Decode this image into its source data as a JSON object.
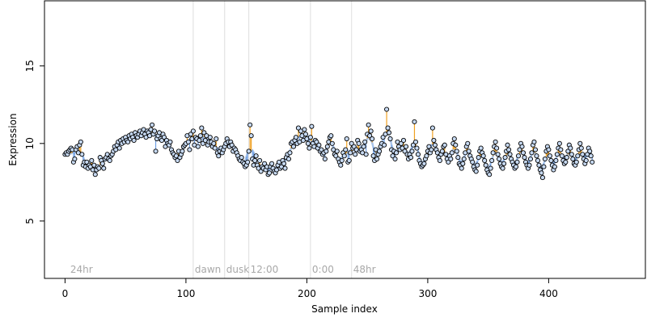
{
  "chart_data": {
    "type": "scatter",
    "xlabel": "Sample index",
    "ylabel": "Expression",
    "xlim": [
      -17,
      480
    ],
    "ylim": [
      1.3,
      19.2
    ],
    "x_ticks": [
      0,
      100,
      200,
      300,
      400
    ],
    "y_ticks": [
      5,
      10,
      15
    ],
    "grid": false,
    "legend": "none",
    "colors": {
      "above_fit_segment": "#f0a020",
      "below_fit_segment": "#6f9fe3",
      "fit_line": "#a9c4ea",
      "point_fill": "#c6d9f2",
      "point_stroke": "#000000",
      "annotation_line": "#dedede",
      "annotation_text": "#a8a8a8"
    },
    "annotations": [
      {
        "x": 3,
        "label": "24hr",
        "line": false
      },
      {
        "x": 106,
        "label": "dawn",
        "line": true
      },
      {
        "x": 132,
        "label": "dusk",
        "line": true
      },
      {
        "x": 152,
        "label": "12:00",
        "line": true
      },
      {
        "x": 203,
        "label": "0:00",
        "line": true
      },
      {
        "x": 237,
        "label": "48hr",
        "line": true
      }
    ],
    "series": [
      {
        "values": [
          9.3,
          9.4,
          9.3,
          9.5,
          9.6,
          9.7,
          9.6,
          8.8,
          9.0,
          9.6,
          9.8,
          9.4,
          9.9,
          10.1,
          9.3,
          8.6,
          8.8,
          8.5,
          8.8,
          8.4,
          8.6,
          8.5,
          8.9,
          8.3,
          8.6,
          8.0,
          8.3,
          8.5,
          8.4,
          9.1,
          8.9,
          8.7,
          8.4,
          9.0,
          9.1,
          9.3,
          9.0,
          8.9,
          9.2,
          9.3,
          9.5,
          9.8,
          9.6,
          9.9,
          10.1,
          9.7,
          10.2,
          10.0,
          10.3,
          10.1,
          10.4,
          10.2,
          10.1,
          10.5,
          10.3,
          10.6,
          10.4,
          10.2,
          10.7,
          10.5,
          10.4,
          10.6,
          10.8,
          10.5,
          10.7,
          10.9,
          10.6,
          10.4,
          10.8,
          10.7,
          10.5,
          10.9,
          11.2,
          10.6,
          10.8,
          9.5,
          10.3,
          10.5,
          10.7,
          10.3,
          10.2,
          10.6,
          10.4,
          9.8,
          10.2,
          10.0,
          9.9,
          10.1,
          9.6,
          9.4,
          9.3,
          9.1,
          9.2,
          8.9,
          9.5,
          9.1,
          9.3,
          9.5,
          9.8,
          9.9,
          10.0,
          10.5,
          10.1,
          9.6,
          10.6,
          10.3,
          10.8,
          9.9,
          10.4,
          10.3,
          9.8,
          10.2,
          10.5,
          11.0,
          10.0,
          10.7,
          10.2,
          10.5,
          9.9,
          10.1,
          10.4,
          10.1,
          9.8,
          10.0,
          9.7,
          10.3,
          9.4,
          9.2,
          9.5,
          9.7,
          9.4,
          9.6,
          9.8,
          10.0,
          10.3,
          10.1,
          9.8,
          10.1,
          9.9,
          9.5,
          9.7,
          9.6,
          9.4,
          9.2,
          9.0,
          8.9,
          9.1,
          8.8,
          8.7,
          8.5,
          8.6,
          8.8,
          9.5,
          11.2,
          10.5,
          9.0,
          8.6,
          8.9,
          9.2,
          8.6,
          8.4,
          8.9,
          8.2,
          8.5,
          8.4,
          8.7,
          8.3,
          8.5,
          8.0,
          8.1,
          8.5,
          8.7,
          8.4,
          8.2,
          8.1,
          8.3,
          8.6,
          8.8,
          8.4,
          8.5,
          8.9,
          8.7,
          8.4,
          9.1,
          9.3,
          9.0,
          9.4,
          10.0,
          10.1,
          9.8,
          10.2,
          10.4,
          10.0,
          11.0,
          10.1,
          10.8,
          10.5,
          10.2,
          10.9,
          10.6,
          10.3,
          10.0,
          9.7,
          10.4,
          11.1,
          10.0,
          9.8,
          10.2,
          10.1,
          9.7,
          9.9,
          9.5,
          9.6,
          9.3,
          9.4,
          9.0,
          9.5,
          9.8,
          10.1,
          10.4,
          10.5,
          10.0,
          9.6,
          9.3,
          9.2,
          9.5,
          9.0,
          8.8,
          8.6,
          8.9,
          9.4,
          9.2,
          9.6,
          10.3,
          8.8,
          8.9,
          9.4,
          10.0,
          9.7,
          9.8,
          9.3,
          9.6,
          10.2,
          10.0,
          9.5,
          9.6,
          9.4,
          9.8,
          10.1,
          9.3,
          10.6,
          11.2,
          10.5,
          10.8,
          10.3,
          9.2,
          8.9,
          9.6,
          9.0,
          9.3,
          9.5,
          9.8,
          10.0,
          10.4,
          9.9,
          10.6,
          12.2,
          11.0,
          10.7,
          10.3,
          9.6,
          9.2,
          9.5,
          9.0,
          9.4,
          10.1,
          9.8,
          9.6,
          10.0,
          9.7,
          10.2,
          9.5,
          9.8,
          9.3,
          9.0,
          9.3,
          9.1,
          9.5,
          9.9,
          11.4,
          10.1,
          9.7,
          9.3,
          8.9,
          8.7,
          8.5,
          8.6,
          8.7,
          9.0,
          9.2,
          9.5,
          9.8,
          9.4,
          9.6,
          11.0,
          10.2,
          9.9,
          9.6,
          9.4,
          9.1,
          8.9,
          9.3,
          9.5,
          9.8,
          9.9,
          9.3,
          9.0,
          8.8,
          9.2,
          9.0,
          9.4,
          10.0,
          10.3,
          9.9,
          9.5,
          9.1,
          8.7,
          8.6,
          8.4,
          8.7,
          9.0,
          9.4,
          9.8,
          10.0,
          9.5,
          9.2,
          9.0,
          8.8,
          8.5,
          8.3,
          8.2,
          8.6,
          9.1,
          9.5,
          9.7,
          9.4,
          9.2,
          8.9,
          8.6,
          8.3,
          8.1,
          8.0,
          8.4,
          8.9,
          9.4,
          9.8,
          10.1,
          9.7,
          9.3,
          9.0,
          8.7,
          8.5,
          8.4,
          8.7,
          9.1,
          9.5,
          9.9,
          9.6,
          9.3,
          9.0,
          8.8,
          8.6,
          8.4,
          8.5,
          8.8,
          9.2,
          9.6,
          10.0,
          9.8,
          9.4,
          9.1,
          8.8,
          8.6,
          8.4,
          8.6,
          9.0,
          9.4,
          9.9,
          10.1,
          9.6,
          9.2,
          8.9,
          8.6,
          8.3,
          8.1,
          7.8,
          8.5,
          9.0,
          9.5,
          9.8,
          9.6,
          9.2,
          8.9,
          8.6,
          8.3,
          8.5,
          8.9,
          9.3,
          9.7,
          10.0,
          9.6,
          9.2,
          8.9,
          8.7,
          8.8,
          9.1,
          9.5,
          9.9,
          9.7,
          9.3,
          9.0,
          8.7,
          8.6,
          8.8,
          9.2,
          9.6,
          10.0,
          9.7,
          9.3,
          9.0,
          8.7,
          8.9,
          9.3,
          9.7,
          9.5,
          9.2,
          8.8
        ]
      }
    ]
  }
}
